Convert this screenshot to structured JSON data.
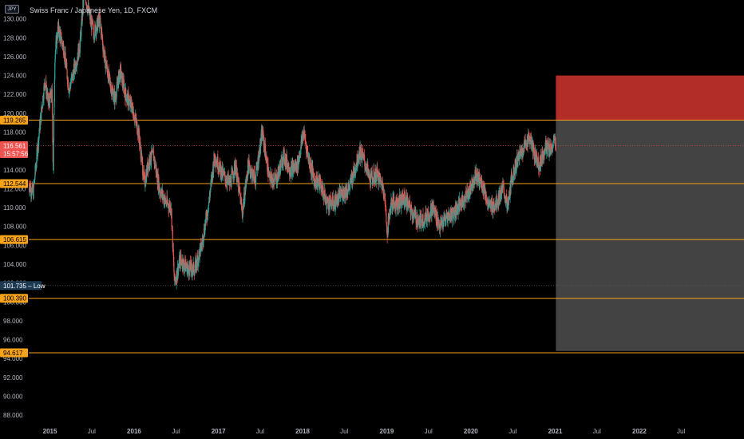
{
  "header": {
    "symbol_badge": "JPY",
    "title": "Swiss Franc / Japanese Yen, 1D, FXCM"
  },
  "colors": {
    "background": "#000000",
    "up": "#26a69a",
    "down": "#ef5350",
    "level_line": "#f7a21b",
    "target_zone": "#b22d27",
    "stop_zone": "#434343",
    "low_badge": "#1e3a52",
    "price_badge": "#ef5350"
  },
  "chart_data": {
    "type": "candlestick",
    "title": "Swiss Franc / Japanese Yen, 1D, FXCM",
    "x_range": [
      "2014-10-01",
      "2023-03-31"
    ],
    "y_range": [
      87.0,
      132.0
    ],
    "y_ticks": [
      "130.000",
      "128.000",
      "126.000",
      "124.000",
      "122.000",
      "120.000",
      "118.000",
      "116.000",
      "114.000",
      "112.000",
      "110.000",
      "108.000",
      "106.000",
      "104.000",
      "102.000",
      "100.000",
      "98.000",
      "96.000",
      "94.000",
      "92.000",
      "90.000",
      "88.000"
    ],
    "x_ticks": [
      {
        "label": "2015",
        "date": "2015-01-01"
      },
      {
        "label": "Jul",
        "date": "2015-07-01"
      },
      {
        "label": "2016",
        "date": "2016-01-01"
      },
      {
        "label": "Jul",
        "date": "2016-07-01"
      },
      {
        "label": "2017",
        "date": "2017-01-01"
      },
      {
        "label": "Jul",
        "date": "2017-07-01"
      },
      {
        "label": "2018",
        "date": "2018-01-01"
      },
      {
        "label": "Jul",
        "date": "2018-07-01"
      },
      {
        "label": "2019",
        "date": "2019-01-01"
      },
      {
        "label": "Jul",
        "date": "2019-07-01"
      },
      {
        "label": "2020",
        "date": "2020-01-01"
      },
      {
        "label": "Jul",
        "date": "2020-07-01"
      },
      {
        "label": "2021",
        "date": "2021-01-01"
      },
      {
        "label": "Jul",
        "date": "2021-07-01"
      },
      {
        "label": "2022",
        "date": "2022-01-01"
      },
      {
        "label": "Jul",
        "date": "2022-07-01"
      }
    ],
    "price_path": [
      {
        "date": "2014-10-01",
        "price": 112.5
      },
      {
        "date": "2014-10-20",
        "price": 111.5
      },
      {
        "date": "2014-11-15",
        "price": 118.0
      },
      {
        "date": "2014-12-10",
        "price": 123.5
      },
      {
        "date": "2014-12-25",
        "price": 121.0
      },
      {
        "date": "2015-01-10",
        "price": 122.0
      },
      {
        "date": "2015-01-15",
        "price": 113.5
      },
      {
        "date": "2015-01-22",
        "price": 126.0
      },
      {
        "date": "2015-02-05",
        "price": 129.0
      },
      {
        "date": "2015-03-01",
        "price": 127.0
      },
      {
        "date": "2015-03-25",
        "price": 122.5
      },
      {
        "date": "2015-04-15",
        "price": 124.5
      },
      {
        "date": "2015-05-10",
        "price": 127.0
      },
      {
        "date": "2015-05-30",
        "price": 133.0
      },
      {
        "date": "2015-06-20",
        "price": 130.5
      },
      {
        "date": "2015-07-10",
        "price": 128.5
      },
      {
        "date": "2015-08-05",
        "price": 130.0
      },
      {
        "date": "2015-08-25",
        "price": 126.0
      },
      {
        "date": "2015-09-20",
        "price": 123.0
      },
      {
        "date": "2015-10-10",
        "price": 121.5
      },
      {
        "date": "2015-11-01",
        "price": 124.5
      },
      {
        "date": "2015-11-25",
        "price": 122.0
      },
      {
        "date": "2015-12-25",
        "price": 120.5
      },
      {
        "date": "2016-01-20",
        "price": 118.0
      },
      {
        "date": "2016-02-15",
        "price": 112.5
      },
      {
        "date": "2016-03-05",
        "price": 115.0
      },
      {
        "date": "2016-03-25",
        "price": 115.5
      },
      {
        "date": "2016-04-20",
        "price": 112.0
      },
      {
        "date": "2016-05-20",
        "price": 110.5
      },
      {
        "date": "2016-06-10",
        "price": 110.0
      },
      {
        "date": "2016-06-24",
        "price": 102.0
      },
      {
        "date": "2016-07-20",
        "price": 104.5
      },
      {
        "date": "2016-08-20",
        "price": 103.5
      },
      {
        "date": "2016-09-20",
        "price": 103.5
      },
      {
        "date": "2016-10-20",
        "price": 106.0
      },
      {
        "date": "2016-11-20",
        "price": 110.5
      },
      {
        "date": "2016-12-15",
        "price": 115.5
      },
      {
        "date": "2017-01-20",
        "price": 113.5
      },
      {
        "date": "2017-02-20",
        "price": 112.5
      },
      {
        "date": "2017-03-15",
        "price": 114.5
      },
      {
        "date": "2017-04-15",
        "price": 109.5
      },
      {
        "date": "2017-05-10",
        "price": 114.5
      },
      {
        "date": "2017-06-10",
        "price": 113.0
      },
      {
        "date": "2017-07-10",
        "price": 118.0
      },
      {
        "date": "2017-08-10",
        "price": 113.0
      },
      {
        "date": "2017-09-10",
        "price": 113.0
      },
      {
        "date": "2017-10-10",
        "price": 115.5
      },
      {
        "date": "2017-11-10",
        "price": 114.0
      },
      {
        "date": "2017-12-10",
        "price": 114.5
      },
      {
        "date": "2018-01-05",
        "price": 118.0
      },
      {
        "date": "2018-01-25",
        "price": 115.5
      },
      {
        "date": "2018-02-20",
        "price": 113.0
      },
      {
        "date": "2018-03-20",
        "price": 112.5
      },
      {
        "date": "2018-04-15",
        "price": 110.5
      },
      {
        "date": "2018-05-20",
        "price": 110.5
      },
      {
        "date": "2018-06-20",
        "price": 111.5
      },
      {
        "date": "2018-07-20",
        "price": 112.0
      },
      {
        "date": "2018-08-15",
        "price": 114.0
      },
      {
        "date": "2018-09-05",
        "price": 116.0
      },
      {
        "date": "2018-09-25",
        "price": 115.0
      },
      {
        "date": "2018-10-20",
        "price": 113.0
      },
      {
        "date": "2018-11-20",
        "price": 113.5
      },
      {
        "date": "2018-12-20",
        "price": 112.0
      },
      {
        "date": "2019-01-03",
        "price": 107.5
      },
      {
        "date": "2019-01-20",
        "price": 110.5
      },
      {
        "date": "2019-02-20",
        "price": 110.5
      },
      {
        "date": "2019-03-20",
        "price": 111.0
      },
      {
        "date": "2019-04-20",
        "price": 109.5
      },
      {
        "date": "2019-05-20",
        "price": 108.5
      },
      {
        "date": "2019-06-20",
        "price": 109.0
      },
      {
        "date": "2019-07-20",
        "price": 110.0
      },
      {
        "date": "2019-08-20",
        "price": 108.0
      },
      {
        "date": "2019-09-20",
        "price": 109.0
      },
      {
        "date": "2019-10-20",
        "price": 109.5
      },
      {
        "date": "2019-11-20",
        "price": 110.5
      },
      {
        "date": "2019-12-20",
        "price": 111.5
      },
      {
        "date": "2020-01-20",
        "price": 113.5
      },
      {
        "date": "2020-02-20",
        "price": 112.5
      },
      {
        "date": "2020-03-20",
        "price": 110.0
      },
      {
        "date": "2020-04-20",
        "price": 110.5
      },
      {
        "date": "2020-05-20",
        "price": 112.0
      },
      {
        "date": "2020-06-10",
        "price": 110.0
      },
      {
        "date": "2020-06-25",
        "price": 113.0
      },
      {
        "date": "2020-07-20",
        "price": 115.0
      },
      {
        "date": "2020-08-20",
        "price": 116.5
      },
      {
        "date": "2020-09-10",
        "price": 117.5
      },
      {
        "date": "2020-10-05",
        "price": 115.5
      },
      {
        "date": "2020-10-25",
        "price": 114.5
      },
      {
        "date": "2020-11-20",
        "price": 116.5
      },
      {
        "date": "2020-12-10",
        "price": 116.0
      },
      {
        "date": "2020-12-28",
        "price": 117.0
      },
      {
        "date": "2021-01-04",
        "price": 116.6
      }
    ],
    "price_lines": [
      {
        "label": "119.265",
        "value": 119.265
      },
      {
        "label": "112.544",
        "value": 112.544
      },
      {
        "label": "106.615",
        "value": 106.615
      },
      {
        "label": "100.390",
        "value": 100.39
      },
      {
        "label": "94.617",
        "value": 94.617
      }
    ],
    "current_price": {
      "label": "116.561",
      "value": 116.561,
      "countdown": "15:57:56"
    },
    "low_marker": {
      "label": "101.735",
      "text": "Low",
      "value": 101.735
    },
    "position": {
      "start_date": "2021-01-04",
      "end_date": "2023-03-31",
      "entry": 119.265,
      "target": 124.0,
      "stop": 94.8
    }
  }
}
